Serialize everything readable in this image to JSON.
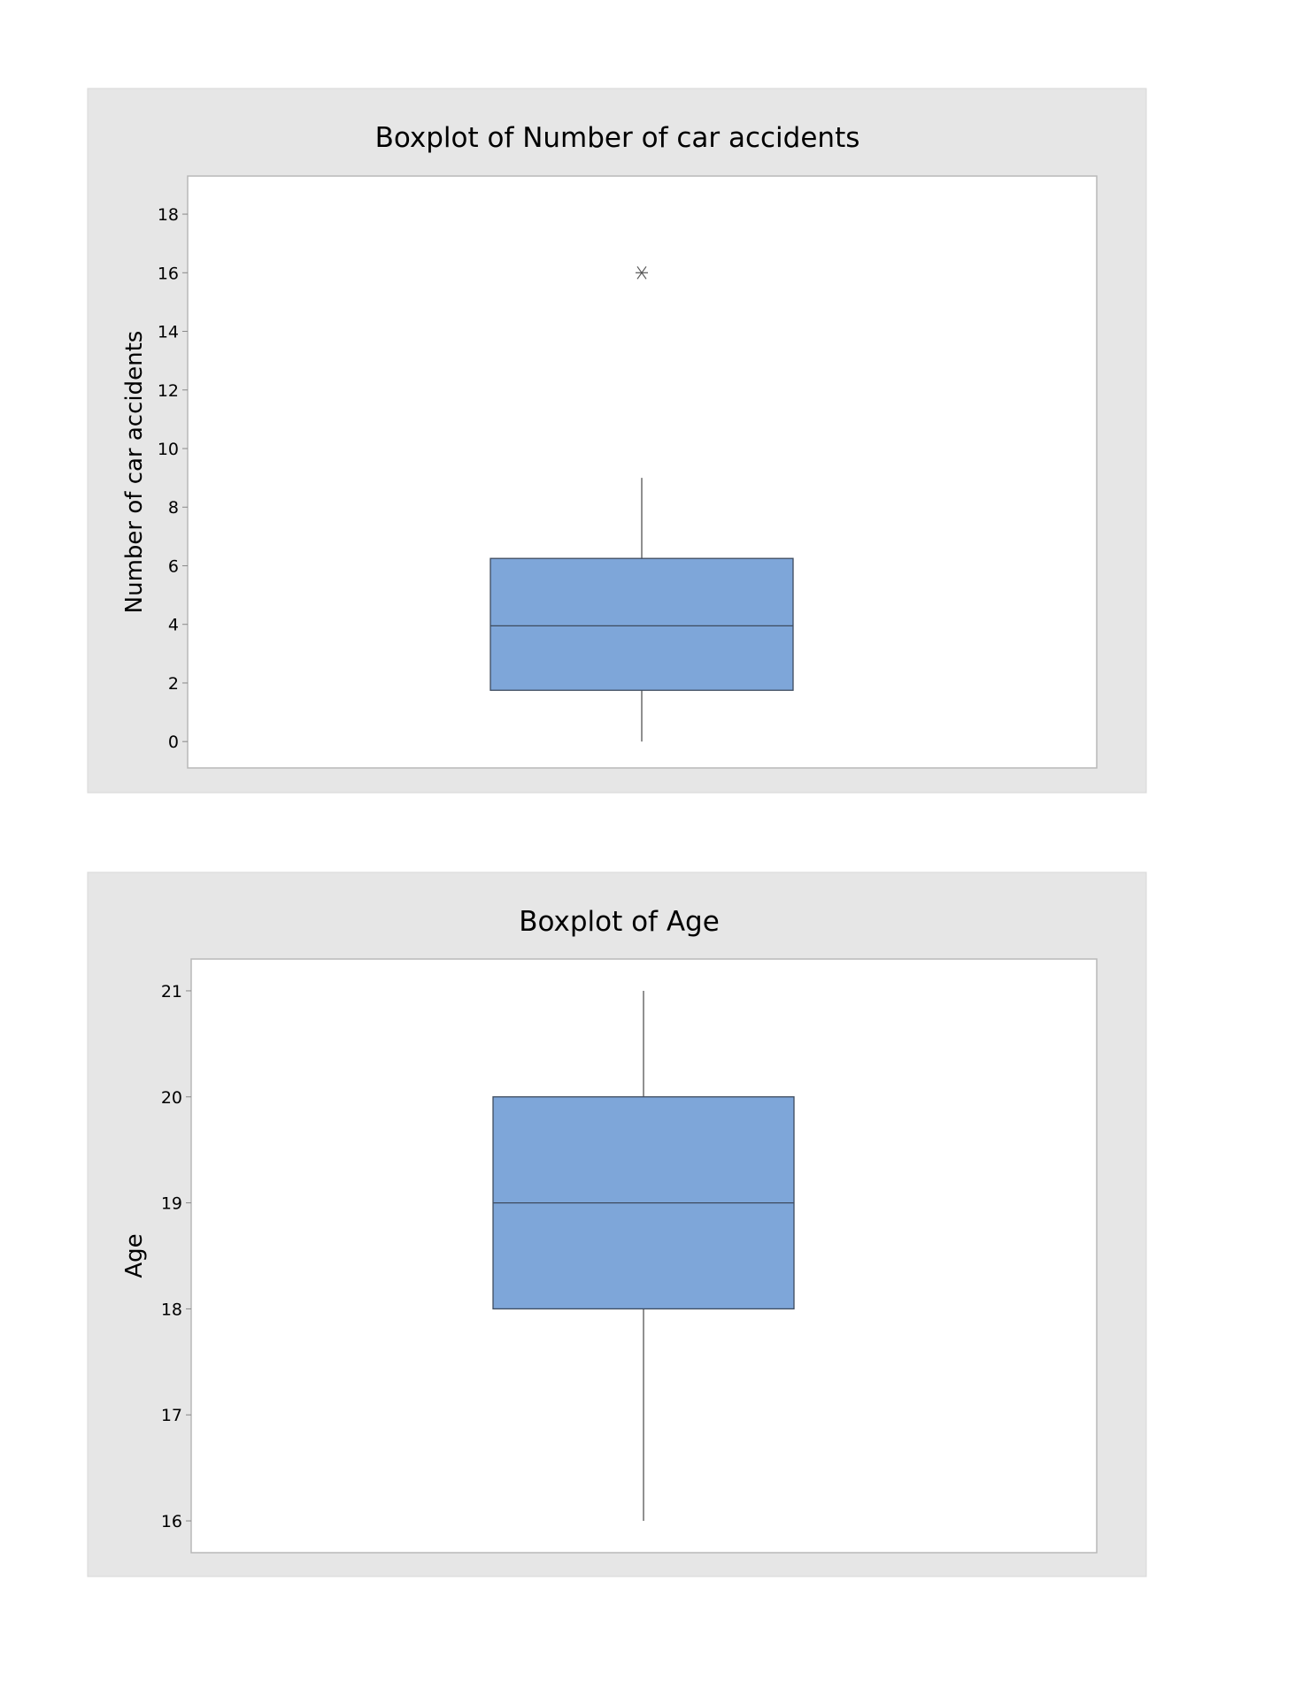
{
  "colors": {
    "panel": "#e6e6e6",
    "plot_bg": "#ffffff",
    "box_fill": "#7ea6d9",
    "box_stroke": "#3e4b5e",
    "whisker": "#555555",
    "frame": "#b8b8b8"
  },
  "chart_data": [
    {
      "type": "box",
      "title": "Boxplot of Number of car accidents",
      "ylabel": "Number of car accidents",
      "ylim": [
        -0.9,
        19.3
      ],
      "yticks": [
        0,
        2,
        4,
        6,
        8,
        10,
        12,
        14,
        16,
        18
      ],
      "grid": false,
      "box": {
        "whisker_low": 0,
        "q1": 1.75,
        "median": 3.95,
        "q3": 6.25,
        "whisker_high": 9
      },
      "outliers": [
        16
      ],
      "outlier_marker": "asterisk"
    },
    {
      "type": "box",
      "title": "Boxplot of Age",
      "ylabel": "Age",
      "ylim": [
        15.7,
        21.3
      ],
      "yticks": [
        16,
        17,
        18,
        19,
        20,
        21
      ],
      "grid": false,
      "box": {
        "whisker_low": 16,
        "q1": 18,
        "median": 19,
        "q3": 20,
        "whisker_high": 21
      },
      "outliers": []
    }
  ]
}
